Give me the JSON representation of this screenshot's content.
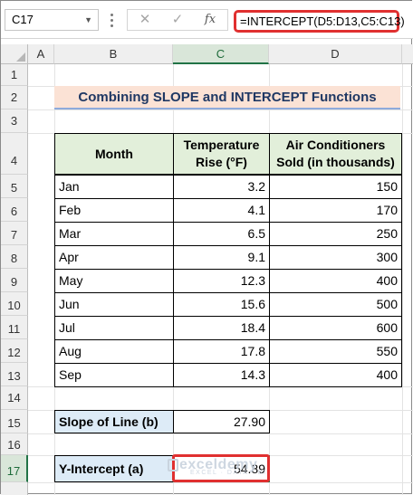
{
  "formula_bar": {
    "name_box": "C17",
    "cancel_icon": "✕",
    "enter_icon": "✓",
    "fx_label": "fx",
    "formula": "=INTERCEPT(D5:D13,C5:C13)"
  },
  "columns": [
    "A",
    "B",
    "C",
    "D"
  ],
  "selected_column": "C",
  "rows": [
    "1",
    "2",
    "3",
    "4",
    "5",
    "6",
    "7",
    "8",
    "9",
    "10",
    "11",
    "12",
    "13",
    "14",
    "15",
    "16",
    "17"
  ],
  "selected_row": "17",
  "title": "Combining SLOPE and INTERCEPT Functions",
  "table": {
    "headers": [
      "Month",
      "Temperature Rise (°F)",
      "Air Conditioners Sold (in thousands)"
    ],
    "rows": [
      {
        "month": "Jan",
        "temp": "3.2",
        "sold": "150"
      },
      {
        "month": "Feb",
        "temp": "4.1",
        "sold": "170"
      },
      {
        "month": "Mar",
        "temp": "6.5",
        "sold": "250"
      },
      {
        "month": "Apr",
        "temp": "9.1",
        "sold": "300"
      },
      {
        "month": "May",
        "temp": "12.3",
        "sold": "400"
      },
      {
        "month": "Jun",
        "temp": "15.6",
        "sold": "500"
      },
      {
        "month": "Jul",
        "temp": "18.4",
        "sold": "600"
      },
      {
        "month": "Aug",
        "temp": "17.8",
        "sold": "550"
      },
      {
        "month": "Sep",
        "temp": "14.3",
        "sold": "400"
      }
    ]
  },
  "slope": {
    "label": "Slope of Line (b)",
    "value": "27.90"
  },
  "intercept": {
    "label": "Y-Intercept (a)",
    "value": "54.89"
  },
  "watermark": {
    "name": "exceldemy",
    "tagline": "EXCEL · DATA · BI"
  },
  "colors": {
    "accent_red": "#e03030",
    "header_green": "#e2efda",
    "label_blue": "#ddebf7",
    "title_fill": "#fbe2d5",
    "title_text": "#1f3864"
  }
}
